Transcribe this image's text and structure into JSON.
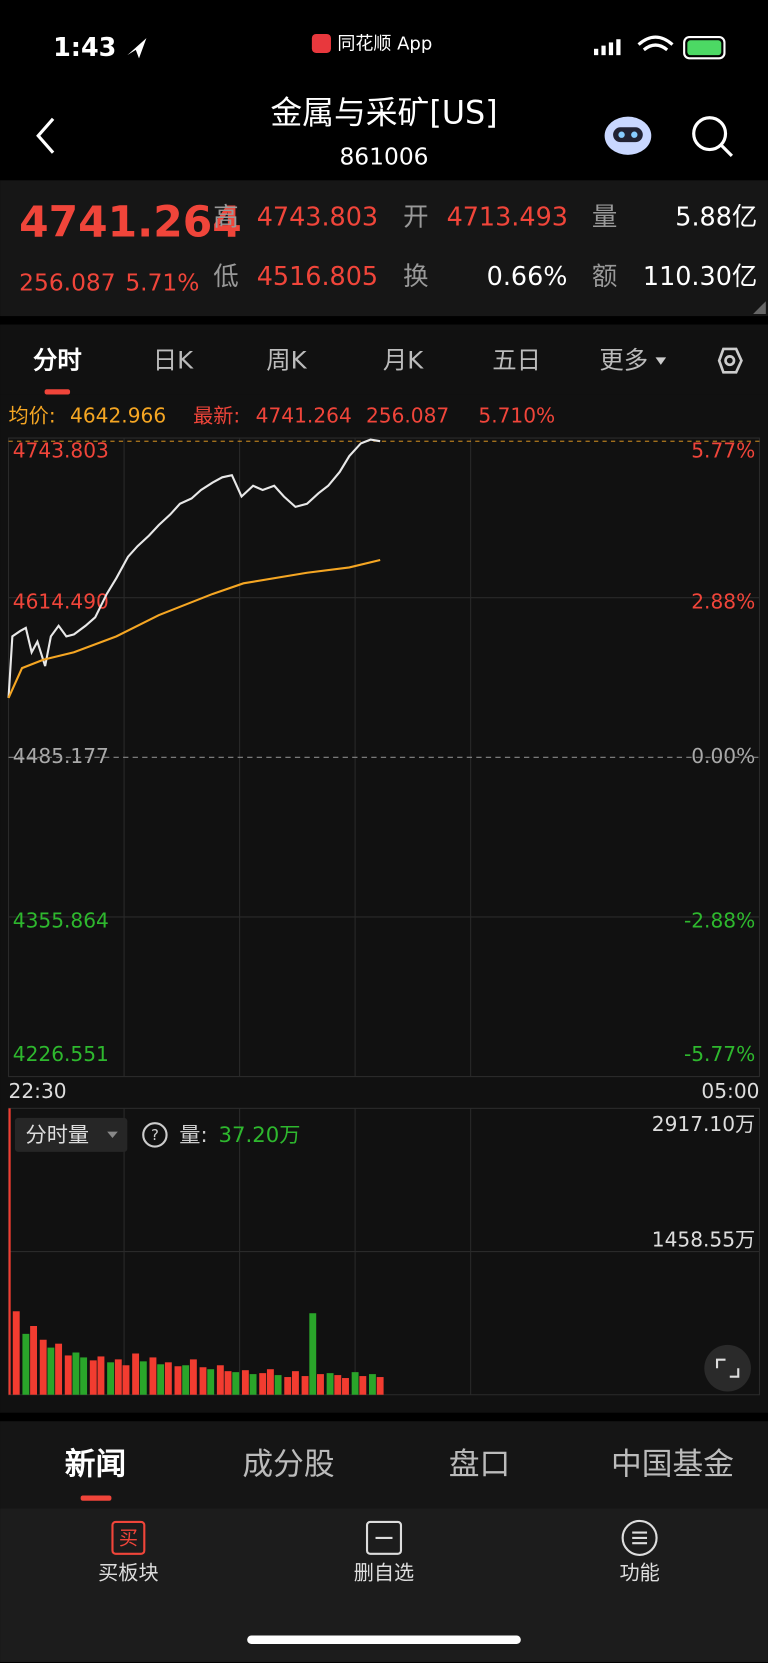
{
  "status_bar": {
    "time": "1:43",
    "app": "同花顺 App"
  },
  "header": {
    "title": "金属与采矿[US]",
    "code": "861006"
  },
  "quote": {
    "price": "4741.264",
    "change": "256.087",
    "change_pct": "5.71%",
    "high_label": "高",
    "high": "4743.803",
    "open_label": "开",
    "open": "4713.493",
    "volume_label": "量",
    "volume": "5.88亿",
    "low_label": "低",
    "low": "4516.805",
    "turnover_label": "换",
    "turnover": "0.66%",
    "amount_label": "额",
    "amount": "110.30亿"
  },
  "tabs": [
    "分时",
    "日K",
    "周K",
    "月K",
    "五日",
    "更多"
  ],
  "info": {
    "avg_label": "均价:",
    "avg": "4642.966",
    "latest_label": "最新:",
    "latest": "4741.264",
    "change": "256.087",
    "change_pct": "5.710%"
  },
  "chart_data": [
    {
      "type": "line",
      "xlim": [
        0,
        390
      ],
      "xticks": [
        {
          "value": 0,
          "label": "22:30"
        },
        {
          "value": 390,
          "label": "05:00"
        }
      ],
      "xgrid": [
        60,
        120,
        180,
        240
      ],
      "ylim": [
        4226.551,
        4743.803
      ],
      "yticks": [
        4743.803,
        {
          "value": 4614.49,
          "label": "4614.490"
        },
        4485.177,
        4355.864,
        4226.551
      ],
      "y2lim": [
        -5.77,
        5.77
      ],
      "y2ticks": [
        {
          "value": 5.77,
          "label": "5.77%"
        },
        {
          "value": 2.88,
          "label": "2.88%"
        },
        {
          "value": 0,
          "label": "0.00%"
        },
        {
          "value": -2.88,
          "label": "-2.88%"
        },
        {
          "value": -5.77,
          "label": "-5.77%"
        }
      ],
      "prev_close": 4485.177,
      "latest_line": 4741.264,
      "grid": true,
      "series": [
        {
          "color": "#e8e8e8",
          "x": [
            0,
            2,
            6,
            9,
            12,
            15,
            19,
            22,
            26,
            30,
            34,
            40,
            45,
            51,
            56,
            62,
            67,
            73,
            78,
            84,
            89,
            95,
            100,
            106,
            111,
            116,
            121,
            127,
            132,
            138,
            143,
            149,
            155,
            161,
            166,
            172,
            177,
            183,
            188,
            193
          ],
          "values": [
            4533.3,
            4583.1,
            4587.4,
            4590.0,
            4570.2,
            4578.8,
            4559.1,
            4583.1,
            4591.7,
            4583.1,
            4584.8,
            4591.7,
            4598.6,
            4617.5,
            4630.4,
            4647.6,
            4656.2,
            4664.8,
            4673.3,
            4681.9,
            4690.5,
            4694.8,
            4701.7,
            4707.7,
            4712.0,
            4713.7,
            4696.5,
            4705.1,
            4701.7,
            4705.1,
            4696.5,
            4688.0,
            4690.5,
            4699.1,
            4705.1,
            4716.3,
            4729.2,
            4739.5,
            4742.5,
            4741.264
          ]
        },
        {
          "color": "#f5a623",
          "x": [
            0,
            7,
            18,
            34,
            56,
            78,
            106,
            122,
            155,
            177,
            193
          ],
          "values": [
            4533.3,
            4557.4,
            4564.2,
            4570.2,
            4583.1,
            4600.3,
            4617.5,
            4626.1,
            4634.7,
            4639.0,
            4645.0
          ]
        }
      ]
    },
    {
      "type": "bar",
      "xlim": [
        0,
        390
      ],
      "ylim": [
        0,
        2917.1
      ],
      "yticks": [
        {
          "value": 2917.1,
          "label": "2917.10万"
        },
        {
          "value": 1458.55,
          "label": "1458.55万"
        }
      ],
      "x": [
        0,
        4,
        9,
        13,
        18,
        22,
        26,
        31,
        35,
        39,
        44,
        48,
        53,
        57,
        61,
        66,
        70,
        75,
        79,
        83,
        88,
        92,
        96,
        101,
        105,
        110,
        114,
        118,
        123,
        127,
        132,
        136,
        140,
        145,
        149,
        154,
        158,
        162,
        167,
        171,
        175,
        180,
        184,
        189,
        193
      ],
      "values": [
        2917.1,
        850,
        620,
        700,
        560,
        480,
        520,
        400,
        430,
        380,
        350,
        390,
        330,
        360,
        300,
        420,
        340,
        380,
        310,
        330,
        290,
        300,
        360,
        280,
        260,
        300,
        240,
        230,
        250,
        210,
        220,
        260,
        200,
        180,
        240,
        190,
        830,
        210,
        220,
        200,
        170,
        230,
        190,
        210,
        180
      ],
      "colors": [
        "#f23c30",
        "#f23c30",
        "#2aa52a",
        "#f23c30",
        "#f23c30",
        "#2aa52a",
        "#f23c30",
        "#f23c30",
        "#2aa52a",
        "#2aa52a",
        "#f23c30",
        "#f23c30",
        "#2aa52a",
        "#f23c30",
        "#f23c30",
        "#f23c30",
        "#2aa52a",
        "#f23c30",
        "#2aa52a",
        "#f23c30",
        "#f23c30",
        "#2aa52a",
        "#f23c30",
        "#f23c30",
        "#2aa52a",
        "#f23c30",
        "#f23c30",
        "#2aa52a",
        "#f23c30",
        "#2aa52a",
        "#f23c30",
        "#f23c30",
        "#2aa52a",
        "#f23c30",
        "#f23c30",
        "#f23c30",
        "#2aa52a",
        "#f23c30",
        "#2aa52a",
        "#f23c30",
        "#f23c30",
        "#2aa52a",
        "#f23c30",
        "#2aa52a",
        "#f23c30"
      ]
    }
  ],
  "volume_panel": {
    "selector": "分时量",
    "volume_label": "量:",
    "volume": "37.20万"
  },
  "section_tabs": [
    "新闻",
    "成分股",
    "盘口",
    "中国基金"
  ],
  "toolbar": [
    {
      "icon": "买",
      "label": "买板块"
    },
    {
      "label": "删自选"
    },
    {
      "label": "功能"
    }
  ]
}
